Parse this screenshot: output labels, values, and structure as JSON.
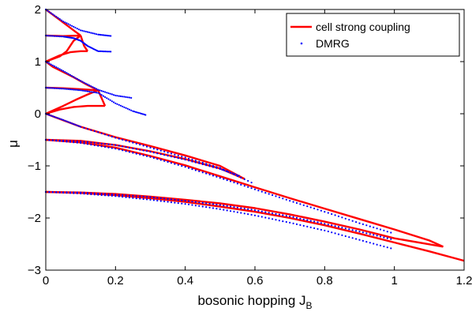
{
  "chart_data": {
    "type": "line",
    "title": "",
    "xlabel": "bosonic hopping J",
    "xlabel_subscript": "B",
    "ylabel": "μ",
    "xlim": [
      0,
      1.2
    ],
    "ylim": [
      -3,
      2
    ],
    "xticks": [
      "0",
      "0.2",
      "0.4",
      "0.6",
      "0.8",
      "1",
      "1.2"
    ],
    "yticks": [
      "−3",
      "−2",
      "−1",
      "0",
      "1",
      "2"
    ],
    "grid": false,
    "legend_position": "top-right",
    "series": [
      {
        "name": "cell strong coupling",
        "style": "line",
        "color": "#ff0000",
        "paths": [
          [
            [
              0,
              2
            ],
            [
              0.04,
              1.8
            ],
            [
              0.08,
              1.6
            ],
            [
              0.1,
              1.5
            ]
          ],
          [
            [
              0,
              1.5
            ],
            [
              0.05,
              1.49
            ],
            [
              0.1,
              1.5
            ]
          ],
          [
            [
              0.1,
              1.5
            ],
            [
              0.08,
              1.4
            ],
            [
              0.06,
              1.2
            ],
            [
              0.04,
              1.1
            ],
            [
              0,
              1
            ]
          ],
          [
            [
              0.1,
              1.5
            ],
            [
              0.11,
              1.3
            ],
            [
              0.12,
              1.2
            ]
          ],
          [
            [
              0,
              1
            ],
            [
              0.04,
              1.12
            ],
            [
              0.07,
              1.18
            ],
            [
              0.1,
              1.2
            ],
            [
              0.12,
              1.2
            ]
          ],
          [
            [
              0,
              1
            ],
            [
              0.02,
              0.9
            ],
            [
              0.05,
              0.8
            ],
            [
              0.08,
              0.7
            ],
            [
              0.12,
              0.55
            ],
            [
              0.15,
              0.45
            ]
          ],
          [
            [
              0,
              0.5
            ],
            [
              0.05,
              0.49
            ],
            [
              0.1,
              0.47
            ],
            [
              0.15,
              0.45
            ]
          ],
          [
            [
              0.15,
              0.45
            ],
            [
              0.12,
              0.37
            ],
            [
              0.09,
              0.28
            ],
            [
              0.05,
              0.15
            ],
            [
              0,
              0
            ]
          ],
          [
            [
              0.15,
              0.45
            ],
            [
              0.16,
              0.3
            ],
            [
              0.17,
              0.15
            ]
          ],
          [
            [
              0,
              0
            ],
            [
              0.04,
              0.08
            ],
            [
              0.08,
              0.13
            ],
            [
              0.12,
              0.15
            ],
            [
              0.17,
              0.15
            ]
          ],
          [
            [
              0,
              0
            ],
            [
              0.04,
              -0.1
            ],
            [
              0.1,
              -0.25
            ],
            [
              0.2,
              -0.45
            ],
            [
              0.3,
              -0.62
            ],
            [
              0.4,
              -0.8
            ],
            [
              0.5,
              -1.0
            ],
            [
              0.57,
              -1.25
            ]
          ],
          [
            [
              0,
              -0.5
            ],
            [
              0.1,
              -0.52
            ],
            [
              0.2,
              -0.6
            ],
            [
              0.3,
              -0.72
            ],
            [
              0.4,
              -0.87
            ],
            [
              0.5,
              -1.05
            ],
            [
              0.57,
              -1.25
            ]
          ],
          [
            [
              0,
              -0.5
            ],
            [
              0.1,
              -0.55
            ],
            [
              0.2,
              -0.65
            ],
            [
              0.3,
              -0.81
            ],
            [
              0.4,
              -0.99
            ],
            [
              0.5,
              -1.2
            ],
            [
              0.6,
              -1.41
            ],
            [
              0.7,
              -1.62
            ],
            [
              0.8,
              -1.82
            ],
            [
              0.9,
              -2.02
            ],
            [
              1.0,
              -2.22
            ],
            [
              1.1,
              -2.43
            ],
            [
              1.14,
              -2.55
            ]
          ],
          [
            [
              0,
              -1.5
            ],
            [
              0.1,
              -1.51
            ],
            [
              0.2,
              -1.54
            ],
            [
              0.3,
              -1.59
            ],
            [
              0.4,
              -1.65
            ],
            [
              0.5,
              -1.72
            ],
            [
              0.6,
              -1.81
            ],
            [
              0.7,
              -1.93
            ],
            [
              0.8,
              -2.07
            ],
            [
              0.9,
              -2.22
            ],
            [
              1.0,
              -2.39
            ],
            [
              1.14,
              -2.55
            ]
          ],
          [
            [
              0,
              -1.5
            ],
            [
              0.1,
              -1.52
            ],
            [
              0.2,
              -1.56
            ],
            [
              0.3,
              -1.62
            ],
            [
              0.4,
              -1.69
            ],
            [
              0.5,
              -1.78
            ],
            [
              0.6,
              -1.88
            ],
            [
              0.7,
              -2.0
            ],
            [
              0.8,
              -2.14
            ],
            [
              0.9,
              -2.3
            ],
            [
              1.0,
              -2.47
            ],
            [
              1.1,
              -2.64
            ],
            [
              1.2,
              -2.82
            ]
          ]
        ]
      },
      {
        "name": "DMRG",
        "style": "dotted",
        "color": "#0000ff",
        "paths": [
          [
            [
              0,
              2
            ],
            [
              0.05,
              1.77
            ],
            [
              0.1,
              1.6
            ],
            [
              0.15,
              1.52
            ],
            [
              0.19,
              1.49
            ]
          ],
          [
            [
              0,
              1.5
            ],
            [
              0.05,
              1.48
            ],
            [
              0.08,
              1.45
            ],
            [
              0.1,
              1.4
            ],
            [
              0.12,
              1.3
            ],
            [
              0.15,
              1.2
            ],
            [
              0.19,
              1.19
            ]
          ],
          [
            [
              0,
              1
            ],
            [
              0.05,
              0.82
            ],
            [
              0.1,
              0.63
            ],
            [
              0.15,
              0.46
            ],
            [
              0.2,
              0.35
            ],
            [
              0.25,
              0.3
            ]
          ],
          [
            [
              0,
              0.5
            ],
            [
              0.05,
              0.48
            ],
            [
              0.1,
              0.45
            ],
            [
              0.15,
              0.4
            ],
            [
              0.2,
              0.2
            ],
            [
              0.25,
              0.05
            ],
            [
              0.29,
              -0.03
            ]
          ],
          [
            [
              0,
              0
            ],
            [
              0.05,
              -0.12
            ],
            [
              0.1,
              -0.25
            ],
            [
              0.2,
              -0.46
            ],
            [
              0.3,
              -0.65
            ],
            [
              0.4,
              -0.84
            ],
            [
              0.5,
              -1.04
            ],
            [
              0.6,
              -1.35
            ]
          ],
          [
            [
              0,
              -0.5
            ],
            [
              0.1,
              -0.53
            ],
            [
              0.2,
              -0.6
            ],
            [
              0.3,
              -0.73
            ],
            [
              0.4,
              -0.88
            ],
            [
              0.5,
              -1.06
            ],
            [
              0.56,
              -1.2
            ]
          ],
          [
            [
              0,
              -0.5
            ],
            [
              0.1,
              -0.56
            ],
            [
              0.2,
              -0.67
            ],
            [
              0.3,
              -0.83
            ],
            [
              0.4,
              -1.02
            ],
            [
              0.5,
              -1.23
            ],
            [
              0.6,
              -1.45
            ],
            [
              0.7,
              -1.67
            ],
            [
              0.8,
              -1.88
            ],
            [
              0.9,
              -2.1
            ],
            [
              1.0,
              -2.3
            ]
          ],
          [
            [
              0,
              -1.5
            ],
            [
              0.1,
              -1.51
            ],
            [
              0.2,
              -1.55
            ],
            [
              0.3,
              -1.6
            ],
            [
              0.4,
              -1.67
            ],
            [
              0.5,
              -1.75
            ],
            [
              0.6,
              -1.85
            ],
            [
              0.7,
              -1.97
            ],
            [
              0.8,
              -2.11
            ],
            [
              0.9,
              -2.26
            ],
            [
              1.0,
              -2.42
            ]
          ],
          [
            [
              0,
              -1.5
            ],
            [
              0.1,
              -1.53
            ],
            [
              0.2,
              -1.58
            ],
            [
              0.3,
              -1.65
            ],
            [
              0.4,
              -1.73
            ],
            [
              0.5,
              -1.83
            ],
            [
              0.6,
              -1.95
            ],
            [
              0.7,
              -2.09
            ],
            [
              0.8,
              -2.24
            ],
            [
              0.9,
              -2.42
            ],
            [
              1.0,
              -2.6
            ]
          ]
        ]
      }
    ]
  }
}
